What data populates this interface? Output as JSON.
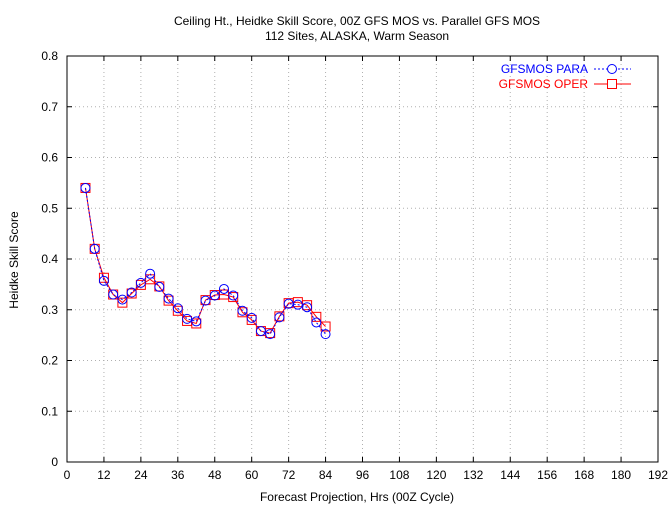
{
  "chart_data": {
    "type": "line",
    "title": "Ceiling Ht., Heidke Skill Score, 00Z GFS MOS vs. Parallel GFS MOS",
    "subtitle": "112 Sites, ALASKA, Warm Season",
    "xlabel": "Forecast Projection, Hrs (00Z Cycle)",
    "ylabel": "Heidke Skill Score",
    "xlim": [
      0,
      192
    ],
    "ylim": [
      0,
      0.8
    ],
    "xticks": [
      0,
      12,
      24,
      36,
      48,
      60,
      72,
      84,
      96,
      108,
      120,
      132,
      144,
      156,
      168,
      180,
      192
    ],
    "yticks": [
      0,
      0.1,
      0.2,
      0.3,
      0.4,
      0.5,
      0.6,
      0.7,
      0.8
    ],
    "grid": true,
    "legend_position": "top-right",
    "x": [
      6,
      9,
      12,
      15,
      18,
      21,
      24,
      27,
      30,
      33,
      36,
      39,
      42,
      45,
      48,
      51,
      54,
      57,
      60,
      63,
      66,
      69,
      72,
      75,
      78,
      81,
      84
    ],
    "series": [
      {
        "name": "GFSMOS PARA",
        "color": "#0000ff",
        "marker": "circle",
        "line_style": "dotted",
        "values": [
          0.54,
          0.42,
          0.357,
          0.33,
          0.32,
          0.334,
          0.353,
          0.371,
          0.345,
          0.322,
          0.303,
          0.282,
          0.277,
          0.318,
          0.328,
          0.341,
          0.328,
          0.298,
          0.284,
          0.258,
          0.252,
          0.285,
          0.312,
          0.31,
          0.305,
          0.275,
          0.252
        ]
      },
      {
        "name": "GFSMOS OPER",
        "color": "#ff0000",
        "marker": "square",
        "line_style": "solid",
        "values": [
          0.54,
          0.42,
          0.363,
          0.33,
          0.314,
          0.332,
          0.349,
          0.36,
          0.346,
          0.318,
          0.298,
          0.278,
          0.273,
          0.319,
          0.329,
          0.33,
          0.325,
          0.295,
          0.28,
          0.258,
          0.254,
          0.287,
          0.313,
          0.315,
          0.309,
          0.286,
          0.267
        ]
      }
    ]
  }
}
